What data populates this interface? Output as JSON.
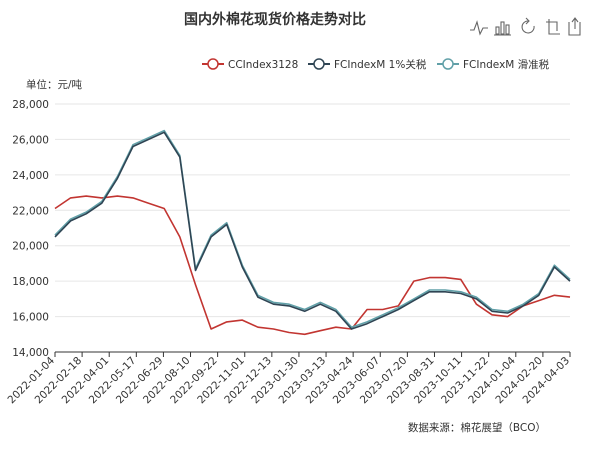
{
  "chart_data": {
    "type": "line",
    "title": "国内外棉花现货价格走势对比",
    "unit_label": "单位：元/吨",
    "source": "数据来源：棉花展望（BCO）",
    "x_ticks": [
      "2022-01-04",
      "2022-02-18",
      "2022-04-01",
      "2022-05-17",
      "2022-06-29",
      "2022-08-10",
      "2022-09-22",
      "2022-11-01",
      "2022-12-13",
      "2023-01-30",
      "2023-03-13",
      "2023-04-24",
      "2023-06-07",
      "2023-07-20",
      "2023-08-31",
      "2023-10-11",
      "2023-11-22",
      "2024-01-04",
      "2024-02-20",
      "2024-04-03"
    ],
    "y_ticks": [
      "14,000",
      "16,000",
      "18,000",
      "20,000",
      "22,000",
      "24,000",
      "26,000",
      "28,000"
    ],
    "ylim": [
      14000,
      28000
    ],
    "grid": true,
    "legend_position": "top-right",
    "series": [
      {
        "name": "CCIndex3128",
        "color": "#c23531",
        "marker": "circle",
        "values": [
          22100,
          22700,
          22800,
          22700,
          22800,
          22700,
          22400,
          22100,
          20500,
          17800,
          15300,
          15700,
          15800,
          15400,
          15300,
          15100,
          15000,
          15200,
          15400,
          15300,
          16400,
          16400,
          16600,
          18000,
          18200,
          18200,
          18100,
          16700,
          16100,
          16000,
          16600,
          16900,
          17200,
          17100
        ]
      },
      {
        "name": "FCIndexM 1%关税",
        "color": "#2f4554",
        "marker": "circle",
        "values": [
          20500,
          21400,
          21800,
          22400,
          23800,
          25600,
          26000,
          26400,
          25000,
          18600,
          20500,
          21200,
          18800,
          17100,
          16700,
          16600,
          16300,
          16700,
          16300,
          15300,
          15600,
          16000,
          16400,
          16900,
          17400,
          17400,
          17300,
          17000,
          16300,
          16200,
          16600,
          17200,
          18800,
          18000
        ]
      },
      {
        "name": "FCIndexM 滑准税",
        "color": "#61a0a8",
        "marker": "circle",
        "values": [
          20600,
          21500,
          21900,
          22500,
          23900,
          25700,
          26100,
          26500,
          25100,
          18700,
          20600,
          21300,
          18900,
          17200,
          16800,
          16700,
          16400,
          16800,
          16400,
          15400,
          15700,
          16100,
          16500,
          17000,
          17500,
          17500,
          17400,
          17100,
          16400,
          16300,
          16700,
          17300,
          18900,
          18100
        ]
      }
    ]
  }
}
